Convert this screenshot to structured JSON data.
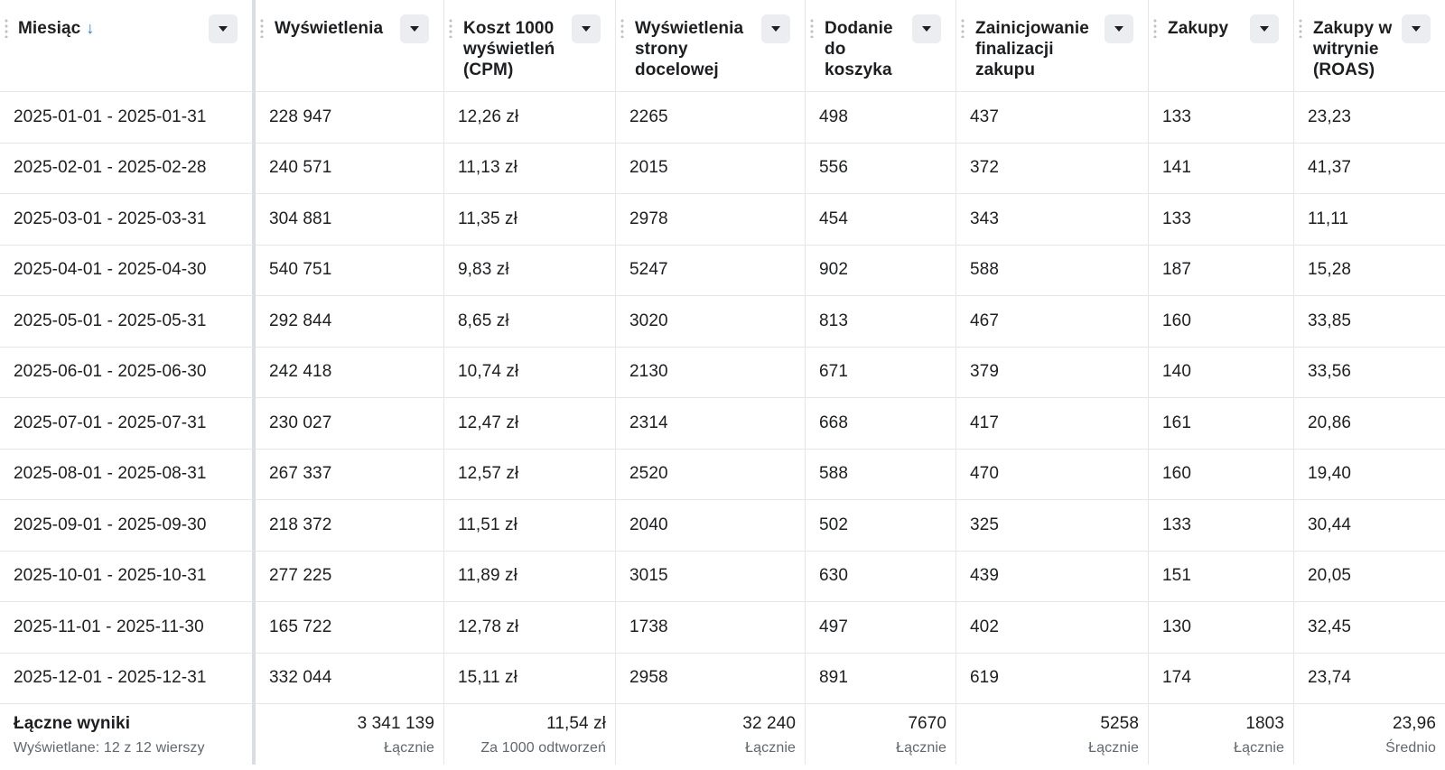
{
  "columns": [
    {
      "label": "Miesiąc",
      "sort_icon": "↓"
    },
    {
      "label": "Wyświetlenia"
    },
    {
      "label": "Koszt 1000 wyświetleń (CPM)"
    },
    {
      "label": "Wyświetlenia strony docelowej"
    },
    {
      "label": "Dodanie do koszyka"
    },
    {
      "label": "Zainicjowanie finalizacji zakupu"
    },
    {
      "label": "Zakupy"
    },
    {
      "label": "Zakupy w witrynie (ROAS)"
    }
  ],
  "rows": [
    [
      "2025-01-01 - 2025-01-31",
      "228 947",
      "12,26 zł",
      "2265",
      "498",
      "437",
      "133",
      "23,23"
    ],
    [
      "2025-02-01 - 2025-02-28",
      "240 571",
      "11,13 zł",
      "2015",
      "556",
      "372",
      "141",
      "41,37"
    ],
    [
      "2025-03-01 - 2025-03-31",
      "304 881",
      "11,35 zł",
      "2978",
      "454",
      "343",
      "133",
      "11,11"
    ],
    [
      "2025-04-01 - 2025-04-30",
      "540 751",
      "9,83 zł",
      "5247",
      "902",
      "588",
      "187",
      "15,28"
    ],
    [
      "2025-05-01 - 2025-05-31",
      "292 844",
      "8,65 zł",
      "3020",
      "813",
      "467",
      "160",
      "33,85"
    ],
    [
      "2025-06-01 - 2025-06-30",
      "242 418",
      "10,74 zł",
      "2130",
      "671",
      "379",
      "140",
      "33,56"
    ],
    [
      "2025-07-01 - 2025-07-31",
      "230 027",
      "12,47 zł",
      "2314",
      "668",
      "417",
      "161",
      "20,86"
    ],
    [
      "2025-08-01 - 2025-08-31",
      "267 337",
      "12,57 zł",
      "2520",
      "588",
      "470",
      "160",
      "19,40"
    ],
    [
      "2025-09-01 - 2025-09-30",
      "218 372",
      "11,51 zł",
      "2040",
      "502",
      "325",
      "133",
      "30,44"
    ],
    [
      "2025-10-01 - 2025-10-31",
      "277 225",
      "11,89 zł",
      "3015",
      "630",
      "439",
      "151",
      "20,05"
    ],
    [
      "2025-11-01 - 2025-11-30",
      "165 722",
      "12,78 zł",
      "1738",
      "497",
      "402",
      "130",
      "32,45"
    ],
    [
      "2025-12-01 - 2025-12-31",
      "332 044",
      "15,11 zł",
      "2958",
      "891",
      "619",
      "174",
      "23,74"
    ]
  ],
  "totals": {
    "title": "Łączne wyniki",
    "subtitle": "Wyświetlane: 12 z 12 wierszy",
    "cells": [
      {
        "value": "3 341 139",
        "label": "Łącznie"
      },
      {
        "value": "11,54 zł",
        "label": "Za 1000 odtworzeń"
      },
      {
        "value": "32 240",
        "label": "Łącznie"
      },
      {
        "value": "7670",
        "label": "Łącznie"
      },
      {
        "value": "5258",
        "label": "Łącznie"
      },
      {
        "value": "1803",
        "label": "Łącznie"
      },
      {
        "value": "23,96",
        "label": "Średnio"
      }
    ]
  }
}
